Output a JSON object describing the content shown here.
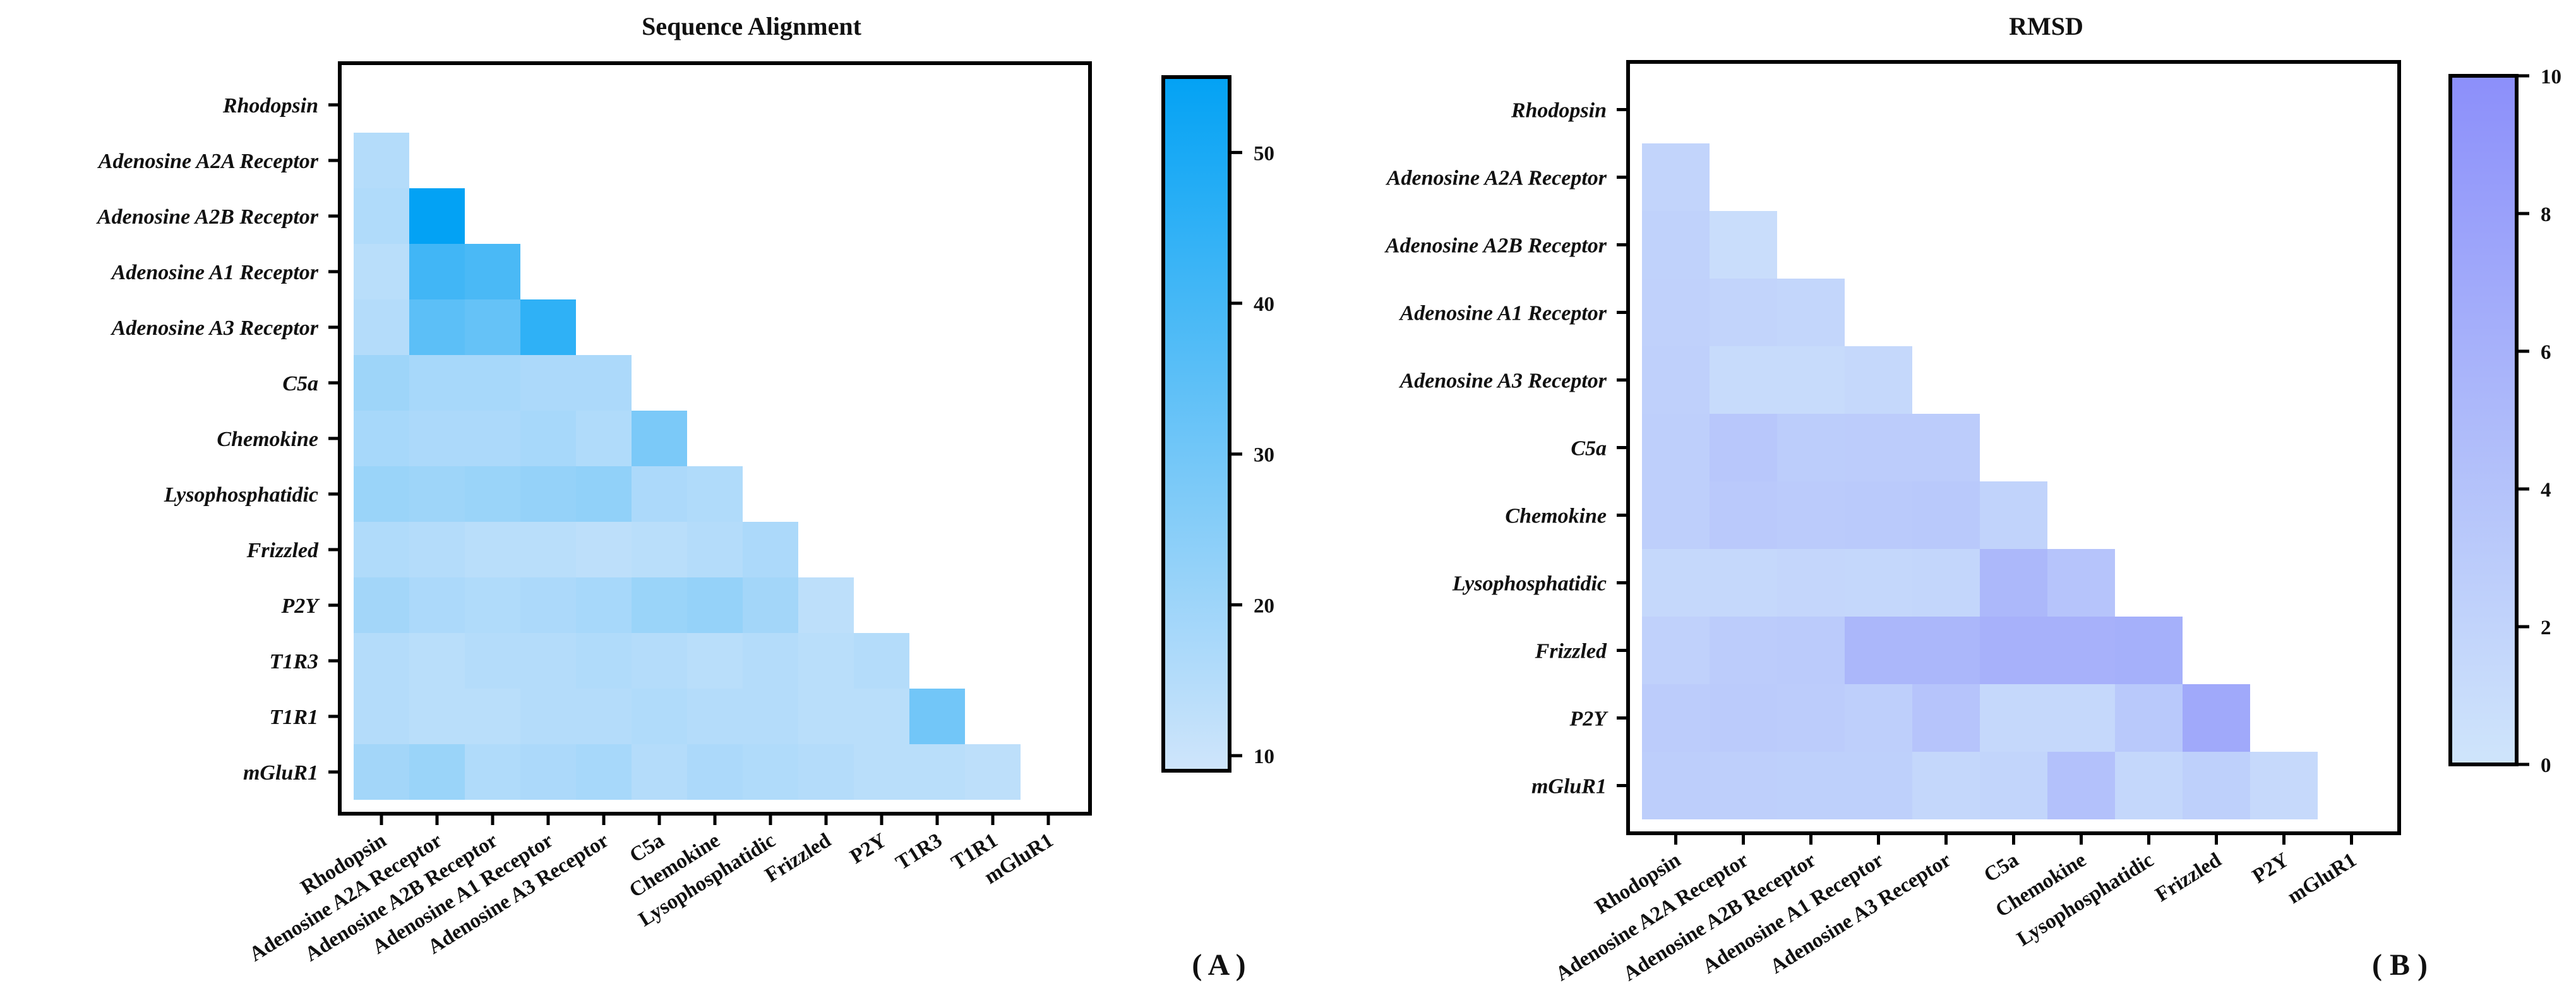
{
  "chart_data": [
    {
      "type": "heatmap",
      "panel": "(A)",
      "title": "Sequence Alignment",
      "labels": [
        "Rhodopsin",
        "Adenosine A2A Receptor",
        "Adenosine A2B Receptor",
        "Adenosine A1 Receptor",
        "Adenosine A3 Receptor",
        "C5a",
        "Chemokine",
        "Lysophosphatidic",
        "Frizzled",
        "P2Y",
        "T1R3",
        "T1R1",
        "mGluR1"
      ],
      "values": [
        [],
        [
          15
        ],
        [
          16,
          55
        ],
        [
          14,
          41,
          39
        ],
        [
          15,
          35,
          33,
          45
        ],
        [
          20,
          18,
          18,
          17,
          17
        ],
        [
          18,
          17,
          17,
          18,
          16,
          28
        ],
        [
          21,
          20,
          21,
          22,
          23,
          17,
          16
        ],
        [
          16,
          15,
          14,
          14,
          13,
          14,
          15,
          17
        ],
        [
          19,
          17,
          16,
          17,
          18,
          21,
          22,
          19,
          13
        ],
        [
          15,
          14,
          15,
          15,
          16,
          15,
          14,
          15,
          14,
          15
        ],
        [
          15,
          14,
          14,
          15,
          15,
          16,
          15,
          15,
          14,
          14,
          30
        ],
        [
          19,
          21,
          16,
          17,
          18,
          15,
          17,
          16,
          15,
          14,
          14,
          13
        ]
      ],
      "colorbar": {
        "min": 9,
        "max": 55,
        "ticks": [
          10,
          20,
          30,
          40,
          50
        ],
        "color_low": "#cfe5fb",
        "color_high": "#03a2f4"
      }
    },
    {
      "type": "heatmap",
      "panel": "(B)",
      "title": "RMSD",
      "labels": [
        "Rhodopsin",
        "Adenosine A2A Receptor",
        "Adenosine A2B Receptor",
        "Adenosine A1 Receptor",
        "Adenosine A3 Receptor",
        "C5a",
        "Chemokine",
        "Lysophosphatidic",
        "Frizzled",
        "P2Y",
        "mGluR1"
      ],
      "values": [
        [],
        [
          2.0
        ],
        [
          2.2,
          0.9
        ],
        [
          2.3,
          2.0,
          1.8
        ],
        [
          2.4,
          1.2,
          1.2,
          1.5
        ],
        [
          2.6,
          3.5,
          2.8,
          2.9,
          2.9
        ],
        [
          2.6,
          3.2,
          3.0,
          3.1,
          3.3,
          2.1
        ],
        [
          1.5,
          1.5,
          1.7,
          1.6,
          1.8,
          5.2,
          3.8
        ],
        [
          2.3,
          2.9,
          3.0,
          5.4,
          5.4,
          6.0,
          6.0,
          6.2
        ],
        [
          2.9,
          3.0,
          2.9,
          2.6,
          3.8,
          1.5,
          1.5,
          3.3,
          7.0
        ],
        [
          2.7,
          2.6,
          2.5,
          2.5,
          1.6,
          1.9,
          4.2,
          1.6,
          2.5,
          1.4
        ]
      ],
      "colorbar": {
        "min": 0,
        "max": 10,
        "ticks": [
          0,
          2,
          4,
          6,
          8,
          10
        ],
        "color_low": "#cfe5fb",
        "color_high": "#8c8ffa"
      }
    }
  ],
  "panels": {
    "a": "( A )",
    "b": "( B )"
  }
}
